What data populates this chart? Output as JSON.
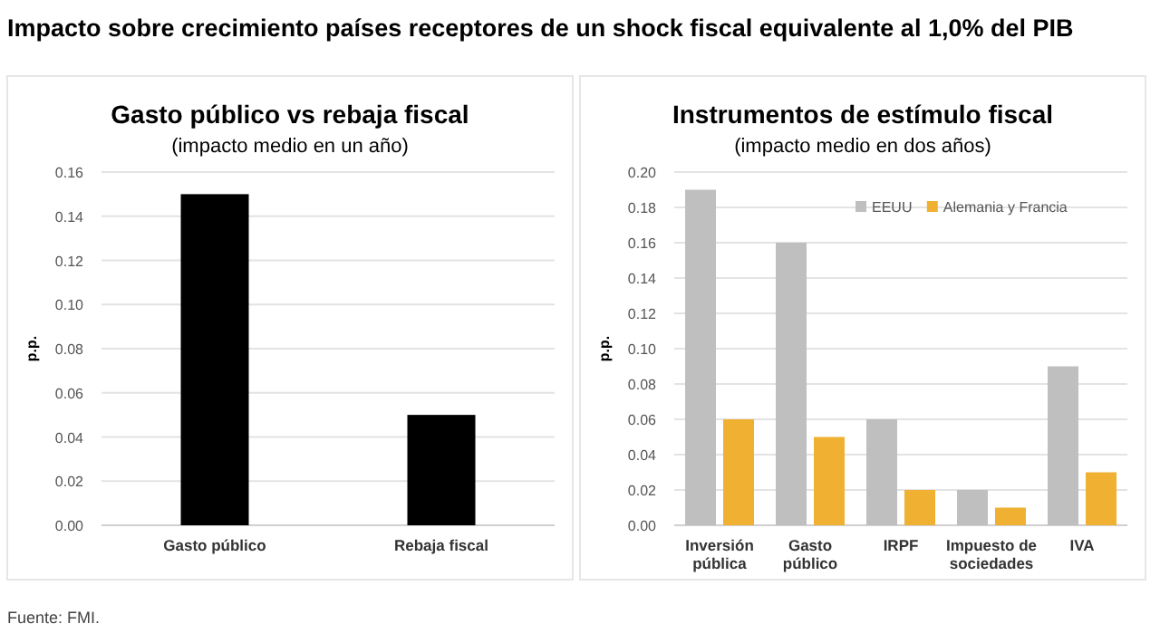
{
  "chart_data": [
    {
      "type": "other",
      "title": "Impacto sobre crecimiento países receptores de un shock fiscal equivalente al 1,0% del PIB",
      "annotations": [
        "Fuente: FMI."
      ]
    },
    {
      "type": "bar",
      "title": "Gasto público vs rebaja fiscal",
      "subtitle": "(impacto medio en un año)",
      "ylabel": "p.p.",
      "categories": [
        "Gasto público",
        "Rebaja fiscal"
      ],
      "series": [
        {
          "color": "#000000",
          "values": [
            0.15,
            0.05
          ]
        }
      ],
      "ylim": [
        0,
        0.16
      ],
      "yticks": [
        {
          "value": 0,
          "label": "0.00"
        },
        {
          "value": 0.02,
          "label": "0.02"
        },
        {
          "value": 0.04,
          "label": "0.04"
        },
        {
          "value": 0.06,
          "label": "0.06"
        },
        {
          "value": 0.08,
          "label": "0.08"
        },
        {
          "value": 0.1,
          "label": "0.10"
        },
        {
          "value": 0.12,
          "label": "0.12"
        },
        {
          "value": 0.14,
          "label": "0.14"
        },
        {
          "value": 0.16,
          "label": "0.16"
        }
      ],
      "grid": "y",
      "legend": false
    },
    {
      "type": "bar",
      "title": "Instrumentos de estímulo fiscal",
      "subtitle": "(impacto medio en dos años)",
      "ylabel": "p.p.",
      "categories": [
        "Inversión pública",
        "Gasto público",
        "IRPF",
        "Impuesto de sociedades",
        "IVA"
      ],
      "series": [
        {
          "name": "EEUU",
          "color": "#bfbfbf",
          "values": [
            0.19,
            0.16,
            0.06,
            0.02,
            0.09
          ]
        },
        {
          "name": "Alemania y Francia",
          "color": "#f0b132",
          "values": [
            0.06,
            0.05,
            0.02,
            0.01,
            0.03
          ]
        }
      ],
      "ylim": [
        0,
        0.2
      ],
      "yticks": [
        {
          "value": 0,
          "label": "0.00"
        },
        {
          "value": 0.02,
          "label": "0.02"
        },
        {
          "value": 0.04,
          "label": "0.04"
        },
        {
          "value": 0.06,
          "label": "0.06"
        },
        {
          "value": 0.08,
          "label": "0.08"
        },
        {
          "value": 0.1,
          "label": "0.10"
        },
        {
          "value": 0.12,
          "label": "0.12"
        },
        {
          "value": 0.14,
          "label": "0.14"
        },
        {
          "value": 0.16,
          "label": "0.16"
        },
        {
          "value": 0.18,
          "label": "0.18"
        },
        {
          "value": 0.2,
          "label": "0.20"
        }
      ],
      "grid": "y",
      "legend": "top right"
    }
  ]
}
